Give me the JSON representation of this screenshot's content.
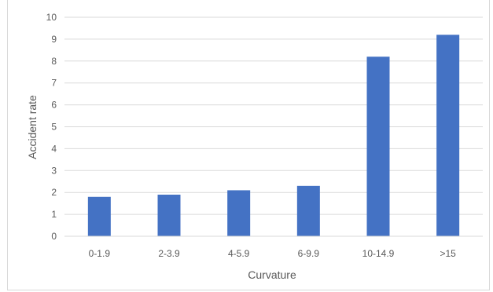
{
  "chart_data": {
    "type": "bar",
    "categories": [
      "0-1.9",
      "2-3.9",
      "4-5.9",
      "6-9.9",
      "10-14.9",
      ">15"
    ],
    "values": [
      1.8,
      1.9,
      2.1,
      2.3,
      8.2,
      9.2
    ],
    "xlabel": "Curvature",
    "ylabel": "Accident rate",
    "ylim": [
      0,
      10
    ],
    "yticks": [
      "0",
      "1",
      "2",
      "3",
      "4",
      "5",
      "6",
      "7",
      "8",
      "9",
      "10"
    ],
    "grid": true,
    "bar_color": "#4472c4",
    "gridline_color": "#d9d9d9"
  }
}
